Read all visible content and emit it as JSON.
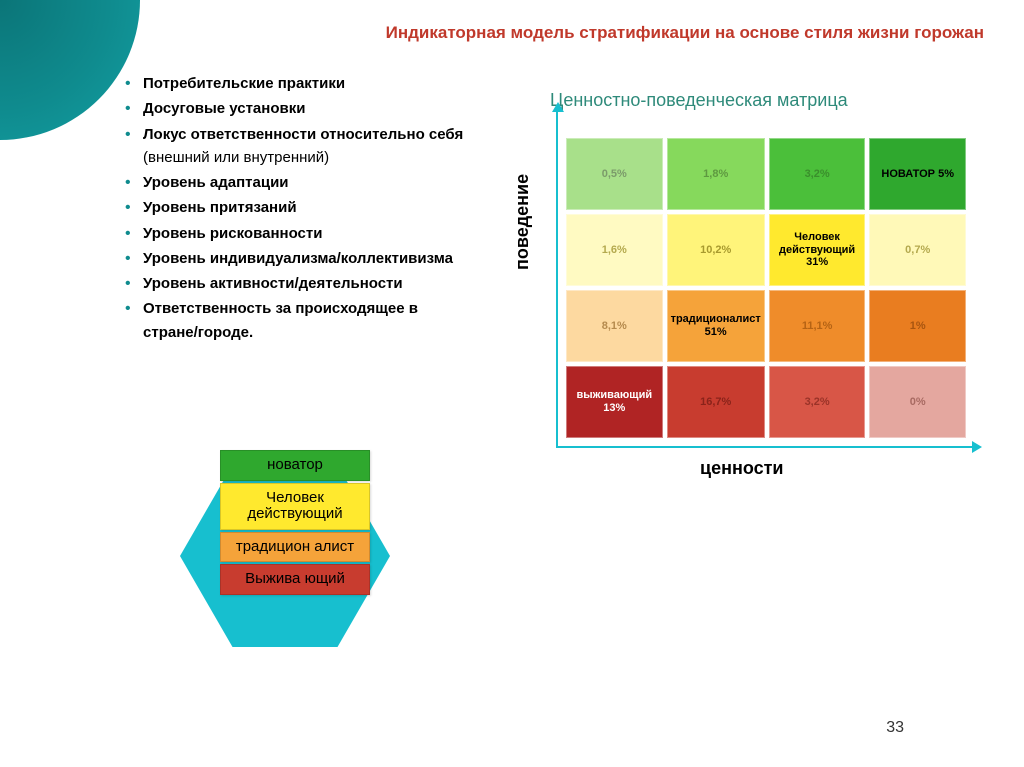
{
  "title": "Индикаторная модель стратификации на основе стиля жизни горожан",
  "bullets": [
    {
      "bold": "Потребительские практики",
      "rest": ""
    },
    {
      "bold": "Досуговые установки",
      "rest": ""
    },
    {
      "bold": "Локус ответственности относительно себя",
      "rest": " (внешний или внутренний)"
    },
    {
      "bold": "Уровень адаптации",
      "rest": ""
    },
    {
      "bold": "Уровень притязаний",
      "rest": ""
    },
    {
      "bold": "Уровень рискованности",
      "rest": ""
    },
    {
      "bold": "Уровень индивидуализма/коллективизма",
      "rest": ""
    },
    {
      "bold": "Уровень активности/деятельности",
      "rest": ""
    },
    {
      "bold": "Ответственность за происходящее в стране/городе.",
      "rest": ""
    }
  ],
  "matrix": {
    "title": "Ценностно-поведенческая матрица",
    "ylabel": "поведение",
    "xlabel": "ценности",
    "cells": [
      [
        {
          "label": "0,5%",
          "bg": "#a8e08a",
          "fg": "#7b9b6a"
        },
        {
          "label": "1,8%",
          "bg": "#86d95c",
          "fg": "#5e9940"
        },
        {
          "label": "3,2%",
          "bg": "#4bbf3a",
          "fg": "#3a8f2c"
        },
        {
          "label": "НОВАТОР 5%",
          "bg": "#2fa82e",
          "fg": "#000000"
        }
      ],
      [
        {
          "label": "1,6%",
          "bg": "#fffac2",
          "fg": "#b4a94e"
        },
        {
          "label": "10,2%",
          "bg": "#fff47a",
          "fg": "#a89a2e"
        },
        {
          "label": "Человек действующий 31%",
          "bg": "#ffe92e",
          "fg": "#000000"
        },
        {
          "label": "0,7%",
          "bg": "#fff9b8",
          "fg": "#b4a94e"
        }
      ],
      [
        {
          "label": "8,1%",
          "bg": "#fdd9a0",
          "fg": "#b58a4d"
        },
        {
          "label": "традиционалист 51%",
          "bg": "#f5a33a",
          "fg": "#000000"
        },
        {
          "label": "11,1%",
          "bg": "#ef8c2a",
          "fg": "#b56314"
        },
        {
          "label": "1%",
          "bg": "#e97d20",
          "fg": "#a85510"
        }
      ],
      [
        {
          "label": "выживающий 13%",
          "bg": "#b02424",
          "fg": "#ffffff"
        },
        {
          "label": "16,7%",
          "bg": "#c83c2f",
          "fg": "#8a231a"
        },
        {
          "label": "3,2%",
          "bg": "#d85647",
          "fg": "#9a3328"
        },
        {
          "label": "0%",
          "bg": "#e4a79f",
          "fg": "#a86a62"
        }
      ]
    ]
  },
  "hex": {
    "items": [
      {
        "label": "новатор",
        "bg": "#2fa82e",
        "fg": "#000000"
      },
      {
        "label": "Человек действующий",
        "bg": "#ffe92e",
        "fg": "#000000"
      },
      {
        "label": "традицион алист",
        "bg": "#f5a33a",
        "fg": "#000000"
      },
      {
        "label": "Выжива ющий",
        "bg": "#c83c2f",
        "fg": "#000000"
      }
    ]
  },
  "pagenum": "33"
}
